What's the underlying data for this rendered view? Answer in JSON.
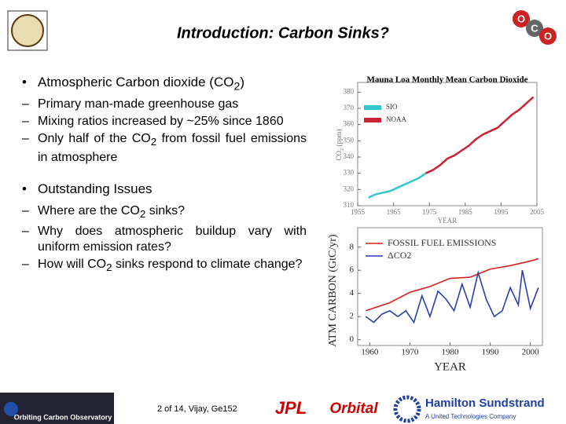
{
  "header": {
    "title": "Introduction: Carbon Sinks?",
    "logo_letters": [
      "O",
      "C",
      "O"
    ]
  },
  "bullets": [
    {
      "text": "Atmospheric Carbon dioxide (CO2)",
      "subs": [
        "Primary man-made greenhouse gas",
        "Mixing ratios increased by ~25% since 1860",
        "Only half of the CO2 from fossil fuel emissions in atmosphere"
      ]
    },
    {
      "text": "Outstanding Issues",
      "subs": [
        "Where are the CO2 sinks?",
        "Why does atmospheric buildup vary with uniform emission rates?",
        "How will CO2 sinks respond to climate change?"
      ]
    }
  ],
  "chart_data": [
    {
      "type": "line",
      "title": "Mauna Loa Monthly Mean Carbon Dioxide",
      "x_label": "YEAR",
      "y_label": "CO2 (ppm)",
      "xlim": [
        1955,
        2005
      ],
      "ylim": [
        310,
        385
      ],
      "xticks": [
        1955,
        1965,
        1975,
        1985,
        1995,
        2005
      ],
      "yticks": [
        310,
        320,
        330,
        340,
        350,
        360,
        370,
        380
      ],
      "grid": false,
      "legend": "upper left",
      "series": [
        {
          "name": "SIO",
          "color": "#33c6cc",
          "x": [
            1958,
            1960,
            1962,
            1964,
            1966,
            1968,
            1970,
            1972,
            1974,
            1976
          ],
          "values": [
            315,
            317,
            318,
            319,
            321,
            323,
            325,
            327,
            330,
            332
          ]
        },
        {
          "name": "NOAA",
          "color": "#cc2233",
          "x": [
            1974,
            1976,
            1978,
            1980,
            1982,
            1984,
            1986,
            1988,
            1990,
            1992,
            1994,
            1996,
            1998,
            2000,
            2002,
            2004
          ],
          "values": [
            330,
            332,
            335,
            339,
            341,
            344,
            347,
            351,
            354,
            356,
            358,
            362,
            366,
            369,
            373,
            377
          ]
        }
      ]
    },
    {
      "type": "line",
      "x_label": "YEAR",
      "y_label": "ATM CARBON (GtC/yr)",
      "xlim": [
        1957,
        2003
      ],
      "ylim": [
        -0.5,
        9
      ],
      "xticks": [
        1960,
        1970,
        1980,
        1990,
        2000
      ],
      "yticks": [
        0,
        2,
        4,
        6,
        8
      ],
      "grid": false,
      "legend": "upper left",
      "series": [
        {
          "name": "FOSSIL FUEL EMISSIONS",
          "color": "#d62020",
          "x": [
            1959,
            1965,
            1970,
            1975,
            1980,
            1985,
            1990,
            1995,
            2000,
            2002
          ],
          "values": [
            2.5,
            3.2,
            4.1,
            4.6,
            5.3,
            5.4,
            6.1,
            6.4,
            6.8,
            7.0
          ]
        },
        {
          "name": "ΔCO2",
          "color": "#2a3fb0",
          "x": [
            1959,
            1961,
            1963,
            1965,
            1967,
            1969,
            1971,
            1973,
            1975,
            1977,
            1979,
            1981,
            1983,
            1985,
            1987,
            1989,
            1991,
            1993,
            1995,
            1997,
            1998,
            2000,
            2002
          ],
          "values": [
            2.0,
            1.5,
            2.2,
            2.5,
            2.0,
            2.5,
            1.5,
            3.8,
            2.0,
            4.2,
            3.5,
            2.5,
            4.8,
            2.8,
            5.8,
            3.5,
            2.0,
            2.5,
            4.5,
            3.0,
            6.0,
            2.7,
            4.5
          ]
        }
      ]
    }
  ],
  "footer": {
    "page": "2 of 14, Vijay, Ge152",
    "mission": "Orbiting Carbon Observatory",
    "logos": [
      "JPL",
      "Orbital",
      "Hamilton Sundstrand",
      "A United Technologies Company"
    ]
  }
}
